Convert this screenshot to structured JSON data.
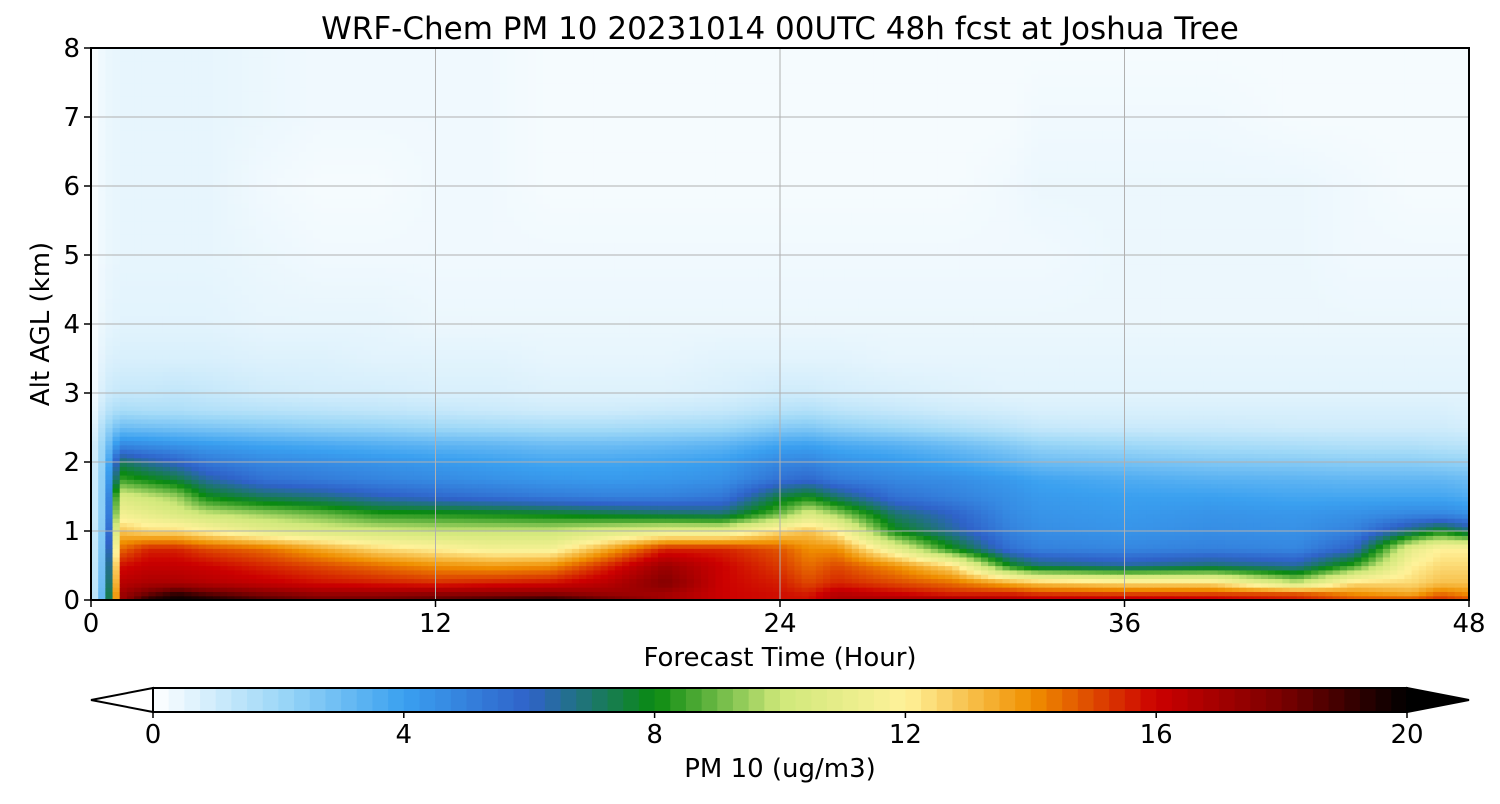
{
  "chart_data": {
    "type": "heatmap",
    "title": "WRF-Chem PM 10  20231014 00UTC 48h fcst at Joshua Tree",
    "xlabel": "Forecast Time (Hour)",
    "ylabel": "Alt AGL (km)",
    "xlim": [
      0,
      48
    ],
    "ylim": [
      0,
      8
    ],
    "x_ticks": [
      "0",
      "12",
      "24",
      "36",
      "48"
    ],
    "y_ticks": [
      "0",
      "1",
      "2",
      "3",
      "4",
      "5",
      "6",
      "7",
      "8"
    ],
    "grid": true,
    "colorbar": {
      "label": "PM 10  (ug/m3)",
      "range": [
        0,
        20
      ],
      "ticks": [
        "0",
        "4",
        "8",
        "12",
        "16",
        "20"
      ],
      "extend": "both",
      "colors": [
        "#ffffff",
        "#9ed8f7",
        "#3aa0f0",
        "#2f62c9",
        "#0a8a10",
        "#cfe87a",
        "#fff29a",
        "#f09000",
        "#cc0000",
        "#7a0000",
        "#000000"
      ]
    },
    "x": [
      0,
      0.5,
      1,
      2,
      3,
      4,
      6,
      8,
      10,
      12,
      14,
      16,
      18,
      20,
      22,
      24,
      25,
      26,
      28,
      30,
      32,
      33,
      36,
      39,
      42,
      44,
      46,
      47,
      48
    ],
    "y": [
      0,
      0.1,
      0.25,
      0.5,
      0.75,
      1.0,
      1.25,
      1.5,
      1.75,
      2.0,
      2.25,
      2.5,
      2.75,
      3.0,
      3.5,
      4.0,
      5.0,
      6.0,
      7.0,
      8.0
    ],
    "z": [
      [
        0.5,
        4.0,
        17.0,
        19.5,
        20.0,
        19.8,
        18.8,
        18.2,
        18.3,
        18.6,
        19.0,
        19.4,
        18.3,
        17.0,
        16.0,
        15.8,
        15.8,
        16.8,
        17.0,
        17.0,
        16.8,
        16.5,
        16.5,
        16.4,
        15.8,
        15.0,
        15.0,
        15.5,
        15.0
      ],
      [
        0.5,
        4.0,
        17.0,
        18.2,
        19.2,
        18.5,
        17.8,
        17.2,
        17.2,
        17.4,
        17.5,
        17.6,
        17.2,
        17.0,
        16.0,
        15.8,
        15.6,
        16.5,
        16.0,
        15.5,
        15.5,
        15.2,
        15.0,
        15.0,
        14.8,
        14.0,
        13.5,
        14.5,
        14.0
      ],
      [
        0.5,
        3.8,
        16.5,
        16.8,
        16.8,
        16.6,
        16.2,
        15.8,
        15.6,
        15.4,
        15.6,
        15.8,
        16.5,
        17.8,
        16.0,
        15.6,
        15.0,
        15.5,
        15.0,
        14.5,
        13.5,
        13.0,
        12.5,
        12.5,
        10.0,
        12.5,
        12.5,
        13.0,
        13.0
      ],
      [
        0.5,
        3.6,
        15.8,
        16.2,
        16.2,
        16.0,
        15.5,
        15.0,
        14.5,
        14.0,
        13.8,
        14.0,
        15.5,
        17.2,
        16.0,
        15.2,
        14.5,
        15.0,
        14.0,
        12.5,
        8.0,
        7.0,
        6.5,
        7.0,
        6.5,
        8.5,
        12.0,
        12.5,
        12.5
      ],
      [
        0.5,
        3.4,
        14.5,
        15.5,
        15.5,
        15.0,
        14.5,
        13.5,
        12.5,
        12.0,
        11.5,
        11.5,
        13.5,
        15.5,
        15.5,
        14.8,
        14.0,
        14.0,
        11.0,
        8.0,
        5.5,
        5.0,
        4.8,
        5.0,
        4.8,
        6.0,
        11.0,
        12.0,
        12.0
      ],
      [
        0.5,
        3.2,
        13.0,
        12.5,
        12.5,
        12.0,
        11.0,
        10.5,
        10.2,
        10.0,
        10.0,
        10.0,
        10.5,
        11.0,
        11.0,
        12.5,
        13.0,
        12.0,
        8.0,
        6.5,
        5.0,
        4.6,
        4.4,
        4.6,
        4.5,
        5.0,
        7.0,
        8.0,
        7.0
      ],
      [
        0.5,
        3.0,
        11.5,
        11.0,
        10.5,
        10.0,
        9.5,
        9.0,
        8.3,
        8.2,
        8.0,
        7.8,
        7.5,
        7.2,
        7.0,
        9.0,
        10.5,
        9.5,
        7.0,
        6.0,
        4.7,
        4.4,
        4.2,
        4.4,
        4.3,
        4.5,
        4.8,
        4.8,
        4.5
      ],
      [
        0.5,
        3.0,
        10.5,
        10.0,
        9.5,
        8.0,
        7.2,
        6.8,
        6.2,
        5.8,
        5.5,
        5.2,
        5.0,
        5.0,
        5.3,
        7.5,
        8.0,
        7.0,
        5.5,
        5.0,
        4.5,
        4.2,
        4.0,
        4.0,
        3.8,
        3.8,
        3.8,
        3.8,
        3.6
      ],
      [
        0.5,
        2.9,
        8.5,
        8.0,
        7.5,
        6.5,
        5.5,
        5.2,
        4.9,
        4.7,
        4.5,
        4.3,
        4.2,
        4.3,
        4.5,
        5.5,
        5.8,
        5.2,
        4.8,
        4.6,
        4.2,
        3.9,
        3.6,
        3.4,
        3.3,
        3.2,
        3.2,
        3.2,
        3.0
      ],
      [
        0.5,
        2.7,
        7.2,
        6.5,
        6.0,
        5.3,
        4.8,
        4.6,
        4.4,
        4.2,
        4.0,
        3.8,
        3.8,
        3.9,
        4.1,
        4.8,
        4.9,
        4.5,
        4.2,
        3.8,
        3.3,
        3.0,
        2.8,
        2.6,
        2.5,
        2.4,
        2.4,
        2.3,
        2.2
      ],
      [
        0.5,
        2.5,
        4.8,
        4.6,
        4.4,
        4.2,
        3.9,
        3.7,
        3.5,
        3.3,
        3.2,
        3.0,
        3.0,
        3.1,
        3.3,
        3.9,
        4.0,
        3.7,
        3.4,
        3.0,
        2.5,
        2.2,
        2.0,
        1.8,
        1.7,
        1.6,
        1.6,
        1.5,
        1.4
      ],
      [
        0.3,
        2.0,
        3.0,
        2.9,
        2.8,
        2.7,
        2.5,
        2.3,
        2.2,
        2.0,
        1.9,
        1.8,
        1.8,
        1.9,
        2.0,
        2.5,
        2.6,
        2.3,
        2.0,
        1.7,
        1.4,
        1.2,
        1.1,
        1.1,
        1.0,
        1.0,
        1.0,
        1.0,
        0.9
      ],
      [
        0.2,
        1.4,
        1.8,
        1.7,
        1.7,
        1.6,
        1.5,
        1.4,
        1.3,
        1.2,
        1.1,
        1.0,
        1.0,
        1.1,
        1.2,
        1.5,
        1.6,
        1.4,
        1.2,
        1.0,
        0.9,
        0.8,
        0.8,
        0.8,
        0.8,
        0.8,
        0.8,
        0.8,
        0.7
      ],
      [
        0.1,
        1.0,
        1.2,
        1.2,
        1.3,
        1.2,
        1.0,
        0.9,
        0.9,
        0.8,
        0.8,
        0.7,
        0.7,
        0.7,
        0.8,
        1.0,
        1.0,
        0.9,
        0.8,
        0.7,
        0.6,
        0.6,
        0.6,
        0.6,
        0.6,
        0.6,
        0.6,
        0.6,
        0.6
      ],
      [
        0.1,
        0.7,
        0.8,
        0.8,
        0.8,
        0.8,
        0.7,
        0.7,
        0.6,
        0.6,
        0.6,
        0.5,
        0.5,
        0.5,
        0.6,
        0.6,
        0.6,
        0.6,
        0.5,
        0.5,
        0.5,
        0.5,
        0.5,
        0.5,
        0.5,
        0.5,
        0.5,
        0.5,
        0.5
      ],
      [
        0.1,
        0.5,
        0.6,
        0.6,
        0.6,
        0.6,
        0.5,
        0.5,
        0.5,
        0.4,
        0.4,
        0.4,
        0.4,
        0.4,
        0.4,
        0.4,
        0.4,
        0.4,
        0.4,
        0.4,
        0.4,
        0.4,
        0.4,
        0.4,
        0.4,
        0.4,
        0.4,
        0.4,
        0.4
      ],
      [
        0.1,
        0.4,
        0.5,
        0.5,
        0.5,
        0.5,
        0.4,
        0.3,
        0.3,
        0.3,
        0.3,
        0.3,
        0.3,
        0.3,
        0.3,
        0.3,
        0.3,
        0.3,
        0.3,
        0.3,
        0.3,
        0.3,
        0.4,
        0.4,
        0.4,
        0.3,
        0.3,
        0.3,
        0.3
      ],
      [
        0.1,
        0.4,
        0.5,
        0.5,
        0.5,
        0.5,
        0.3,
        0.2,
        0.2,
        0.3,
        0.3,
        0.2,
        0.2,
        0.2,
        0.2,
        0.2,
        0.2,
        0.2,
        0.2,
        0.2,
        0.3,
        0.4,
        0.4,
        0.4,
        0.4,
        0.3,
        0.2,
        0.2,
        0.2
      ],
      [
        0.1,
        0.4,
        0.5,
        0.5,
        0.5,
        0.5,
        0.4,
        0.3,
        0.3,
        0.3,
        0.3,
        0.2,
        0.2,
        0.2,
        0.2,
        0.2,
        0.2,
        0.2,
        0.2,
        0.2,
        0.2,
        0.3,
        0.3,
        0.3,
        0.2,
        0.2,
        0.2,
        0.2,
        0.2
      ],
      [
        0.1,
        0.4,
        0.5,
        0.5,
        0.5,
        0.5,
        0.4,
        0.3,
        0.3,
        0.3,
        0.3,
        0.2,
        0.2,
        0.2,
        0.2,
        0.2,
        0.2,
        0.2,
        0.2,
        0.2,
        0.2,
        0.2,
        0.2,
        0.2,
        0.2,
        0.2,
        0.2,
        0.2,
        0.2
      ]
    ]
  }
}
